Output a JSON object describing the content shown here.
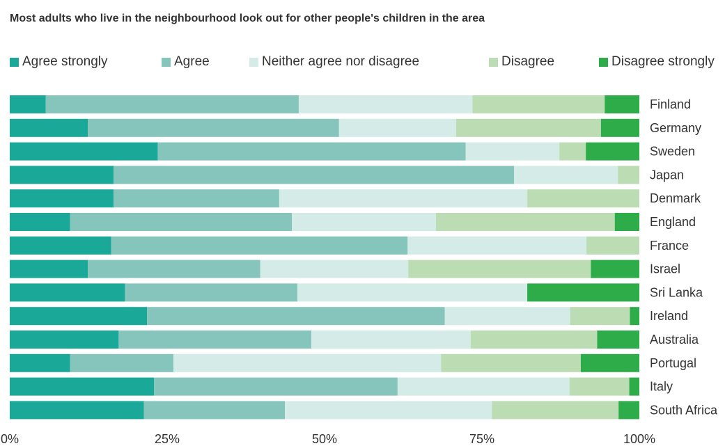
{
  "colors": {
    "agree_strongly": "#1aa898",
    "agree": "#85c5bc",
    "neither": "#d5ebe7",
    "disagree": "#bcdcb4",
    "disagree_strongly": "#2eac4a"
  },
  "chart_data": {
    "type": "bar",
    "orientation": "horizontal",
    "stacked": "100%",
    "title": "Most adults who live in the neighbourhood look out for other people's children in the area",
    "xlabel": "",
    "ylabel": "",
    "xlim": [
      0,
      100
    ],
    "x_ticks": [
      "0%",
      "25%",
      "50%",
      "75%",
      "100%"
    ],
    "legend_position": "top",
    "grid": false,
    "categories": [
      "Finland",
      "Germany",
      "Sweden",
      "Japan",
      "Denmark",
      "England",
      "France",
      "Israel",
      "Sri Lanka",
      "Ireland",
      "Australia",
      "Portugal",
      "Italy",
      "South Africa"
    ],
    "series": [
      {
        "name": "Agree strongly",
        "color_key": "agree_strongly",
        "values": [
          5.7,
          12.4,
          23.5,
          16.5,
          16.5,
          9.6,
          16.1,
          12.4,
          18.3,
          21.8,
          17.3,
          9.6,
          22.9,
          21.3
        ]
      },
      {
        "name": "Agree",
        "color_key": "agree",
        "values": [
          40.2,
          39.9,
          48.9,
          63.6,
          26.3,
          35.2,
          47.1,
          27.4,
          27.4,
          47.3,
          30.6,
          16.4,
          38.7,
          22.4
        ]
      },
      {
        "name": "Neither agree nor disagree",
        "color_key": "neither",
        "values": [
          27.6,
          18.6,
          14.9,
          16.5,
          39.4,
          22.9,
          28.4,
          23.5,
          36.5,
          19.9,
          25.3,
          42.5,
          27.3,
          32.9
        ]
      },
      {
        "name": "Disagree",
        "color_key": "disagree",
        "values": [
          21.0,
          23.0,
          4.2,
          3.4,
          17.8,
          28.4,
          8.4,
          29.0,
          0.0,
          9.5,
          20.1,
          22.2,
          9.5,
          20.1
        ]
      },
      {
        "name": "Disagree strongly",
        "color_key": "disagree_strongly",
        "values": [
          5.5,
          6.1,
          8.5,
          0.0,
          0.0,
          3.9,
          0.0,
          7.7,
          17.8,
          1.5,
          6.7,
          9.3,
          1.6,
          3.3
        ]
      }
    ]
  }
}
